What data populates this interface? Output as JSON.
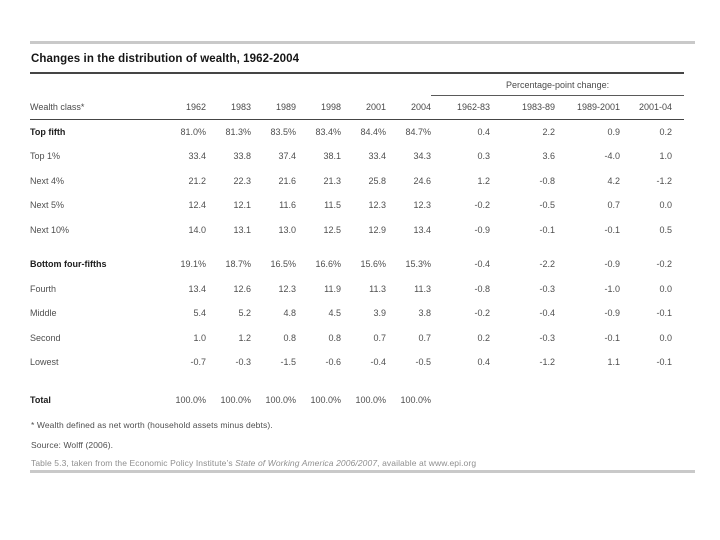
{
  "page": {
    "title": "Changes in the distribution of wealth, 1962-2004"
  },
  "chart_data": {
    "type": "table",
    "title": "Changes in the distribution of wealth, 1962-2004",
    "change_group_header": "Percentage-point change:",
    "columns": {
      "label": "Wealth class*",
      "years": [
        "1962",
        "1983",
        "1989",
        "1998",
        "2001",
        "2004"
      ],
      "changes": [
        "1962-83",
        "1983-89",
        "1989-2001",
        "2001-04"
      ]
    },
    "groups": [
      {
        "rows": [
          {
            "label": "Top fifth",
            "bold": true,
            "values": [
              "81.0%",
              "81.3%",
              "83.5%",
              "83.4%",
              "84.4%",
              "84.7%"
            ],
            "changes": [
              "0.4",
              "2.2",
              "0.9",
              "0.2"
            ]
          },
          {
            "label": "Top 1%",
            "bold": false,
            "values": [
              "33.4",
              "33.8",
              "37.4",
              "38.1",
              "33.4",
              "34.3"
            ],
            "changes": [
              "0.3",
              "3.6",
              "-4.0",
              "1.0"
            ]
          },
          {
            "label": "Next 4%",
            "bold": false,
            "values": [
              "21.2",
              "22.3",
              "21.6",
              "21.3",
              "25.8",
              "24.6"
            ],
            "changes": [
              "1.2",
              "-0.8",
              "4.2",
              "-1.2"
            ]
          },
          {
            "label": "Next 5%",
            "bold": false,
            "values": [
              "12.4",
              "12.1",
              "11.6",
              "11.5",
              "12.3",
              "12.3"
            ],
            "changes": [
              "-0.2",
              "-0.5",
              "0.7",
              "0.0"
            ]
          },
          {
            "label": "Next 10%",
            "bold": false,
            "values": [
              "14.0",
              "13.1",
              "13.0",
              "12.5",
              "12.9",
              "13.4"
            ],
            "changes": [
              "-0.9",
              "-0.1",
              "-0.1",
              "0.5"
            ]
          }
        ]
      },
      {
        "rows": [
          {
            "label": "Bottom four-fifths",
            "bold": true,
            "values": [
              "19.1%",
              "18.7%",
              "16.5%",
              "16.6%",
              "15.6%",
              "15.3%"
            ],
            "changes": [
              "-0.4",
              "-2.2",
              "-0.9",
              "-0.2"
            ]
          },
          {
            "label": "Fourth",
            "bold": false,
            "values": [
              "13.4",
              "12.6",
              "12.3",
              "11.9",
              "11.3",
              "11.3"
            ],
            "changes": [
              "-0.8",
              "-0.3",
              "-1.0",
              "0.0"
            ]
          },
          {
            "label": "Middle",
            "bold": false,
            "values": [
              "5.4",
              "5.2",
              "4.8",
              "4.5",
              "3.9",
              "3.8"
            ],
            "changes": [
              "-0.2",
              "-0.4",
              "-0.9",
              "-0.1"
            ]
          },
          {
            "label": "Second",
            "bold": false,
            "values": [
              "1.0",
              "1.2",
              "0.8",
              "0.8",
              "0.7",
              "0.7"
            ],
            "changes": [
              "0.2",
              "-0.3",
              "-0.1",
              "0.0"
            ]
          },
          {
            "label": "Lowest",
            "bold": false,
            "values": [
              "-0.7",
              "-0.3",
              "-1.5",
              "-0.6",
              "-0.4",
              "-0.5"
            ],
            "changes": [
              "0.4",
              "-1.2",
              "1.1",
              "-0.1"
            ]
          }
        ]
      }
    ],
    "total": {
      "label": "Total",
      "values": [
        "100.0%",
        "100.0%",
        "100.0%",
        "100.0%",
        "100.0%",
        "100.0%"
      ],
      "changes": [
        "",
        "",
        "",
        ""
      ]
    }
  },
  "footnotes": {
    "definition": "* Wealth defined as net worth (household assets minus debts).",
    "source": "Source: Wolff (2006).",
    "credit_prefix": "Table 5.3, taken from the Economic Policy Institute’s ",
    "credit_italic": "State of Working America 2006/2007",
    "credit_suffix": ", available at www.epi.org"
  }
}
